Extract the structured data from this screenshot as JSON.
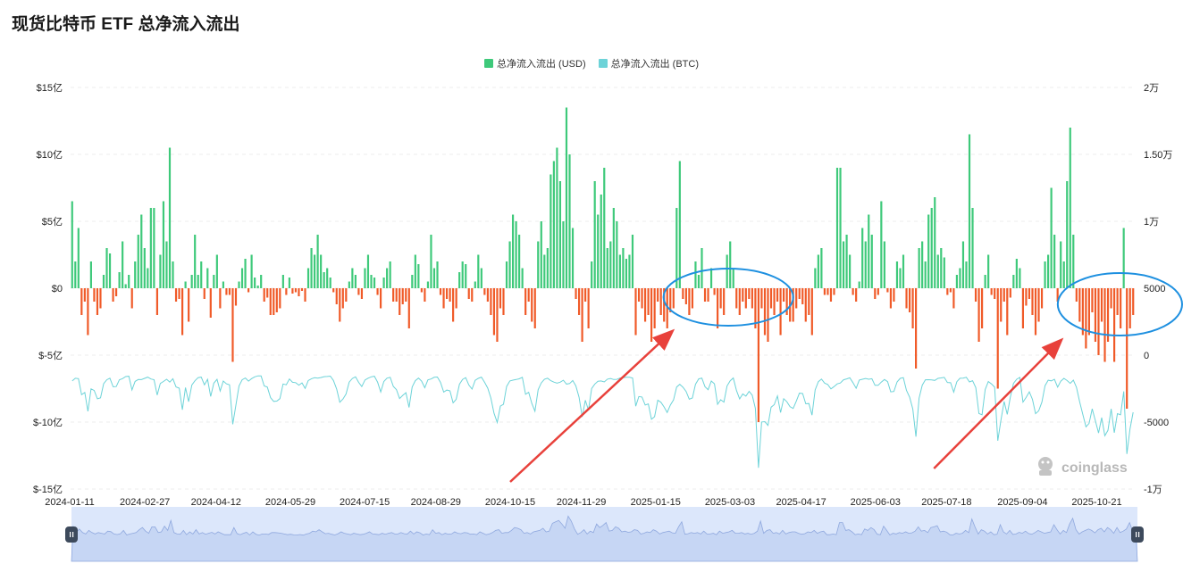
{
  "title": "现货比特币 ETF 总净流入流出",
  "watermark": "coinglass",
  "colors": {
    "inflow": "#3ec97a",
    "outflow": "#f05a28",
    "btc_line": "#6dd3d8",
    "annotation_arrow": "#e8413b",
    "annotation_ellipse": "#1e90e0"
  },
  "chart_data": {
    "type": "bar",
    "title": "现货比特币 ETF 总净流入流出",
    "legend": [
      "总净流入流出 (USD)",
      "总净流入流出 (BTC)"
    ],
    "legend_position": "top-center",
    "x_range": [
      "2024-01-11",
      "2025-11-14"
    ],
    "x_ticks": [
      "2024-01-11",
      "2024-02-27",
      "2024-04-12",
      "2024-05-29",
      "2024-07-15",
      "2024-08-29",
      "2024-10-15",
      "2024-11-29",
      "2025-01-15",
      "2025-03-03",
      "2025-04-17",
      "2025-06-03",
      "2025-07-18",
      "2025-09-04",
      "2025-10-21"
    ],
    "y_left": {
      "ticks": [
        "$15亿",
        "$10亿",
        "$5亿",
        "$0",
        "$-5亿",
        "$-10亿",
        "$-15亿"
      ],
      "range": [
        -15,
        15
      ],
      "unit": "亿 USD"
    },
    "y_right": {
      "ticks": [
        "2万",
        "1.50万",
        "1万",
        "5000",
        "0",
        "-5000",
        "-1万"
      ],
      "range": [
        -10000,
        20000
      ],
      "unit": "BTC"
    },
    "grid": true,
    "series": [
      {
        "name": "总净流入流出 (USD)",
        "kind": "bar",
        "values_note": "daily net flow, 亿 USD",
        "values": [
          6.5,
          2,
          4.5,
          -2,
          -1,
          -3.5,
          2,
          -1,
          -2,
          -1.5,
          1,
          3,
          2.6,
          -1,
          -0.6,
          1.2,
          3.5,
          0.3,
          1,
          -1.5,
          2,
          4,
          5.5,
          3,
          1.5,
          6,
          6,
          -2,
          2.5,
          6.5,
          3.5,
          10.5,
          2,
          -1,
          -0.8,
          -3.5,
          0.5,
          -2.5,
          1,
          4,
          1,
          2,
          -0.8,
          1.5,
          -2.2,
          1,
          2.5,
          -1.5,
          0.5,
          -0.5,
          -0.5,
          -5.5,
          -1.3,
          0.5,
          1.5,
          2.2,
          -0.3,
          2.5,
          0.8,
          0.2,
          1,
          -1,
          -0.7,
          -2,
          -2,
          -1.8,
          -1.5,
          1,
          -0.5,
          0.8,
          -0.4,
          -0.3,
          -0.6,
          -0.2,
          -1,
          1.5,
          3,
          2.5,
          4,
          2.5,
          1.2,
          1.5,
          0.8,
          -0.3,
          -1.2,
          -2.5,
          -1.5,
          -1,
          0.5,
          1.5,
          1,
          -0.5,
          -0.8,
          1.5,
          2.5,
          1,
          0.8,
          -0.5,
          -1.5,
          0.8,
          1.5,
          2,
          -1,
          -1,
          -2,
          -1.2,
          -1,
          -3,
          1,
          2.5,
          1.8,
          -0.3,
          -1,
          0.5,
          4,
          1.5,
          2,
          -0.5,
          -1.5,
          -0.8,
          -1,
          -2.5,
          -1.5,
          1.2,
          2,
          1.8,
          -0.8,
          -1,
          0.5,
          2.5,
          1.5,
          -0.5,
          -1,
          -2,
          -3.5,
          -4,
          -1.5,
          -2,
          2,
          3.5,
          5.5,
          5,
          4,
          1.5,
          -2,
          -1,
          -2.5,
          -3,
          3.5,
          5,
          2.5,
          3,
          8.5,
          9.5,
          10.5,
          8,
          5,
          13.5,
          10,
          4.5,
          -0.8,
          -2,
          -4,
          -1,
          -3,
          2,
          8,
          5.5,
          7,
          9,
          3,
          3.5,
          6,
          5,
          2.5,
          3,
          2.2,
          2.5,
          4,
          -3.5,
          -1,
          -1.5,
          -2.5,
          -2,
          -4,
          -3,
          -1,
          -2,
          -2.5,
          -3,
          -1.8,
          -1.5,
          6,
          9.5,
          -0.8,
          -1.2,
          -2,
          -1.5,
          2,
          1,
          3,
          -1,
          -1,
          1.5,
          -0.5,
          -3,
          -1.5,
          -2,
          2.5,
          3.5,
          1.5,
          -1.5,
          -2,
          -1,
          -1.5,
          -0.8,
          -1.5,
          -3,
          -10,
          -1.5,
          -3.5,
          -4,
          -1.5,
          -2,
          -1,
          -3.5,
          -1,
          -2,
          -2.5,
          -2.5,
          -1.5,
          -0.8,
          -1.2,
          -2.5,
          -2,
          -3.5,
          1.5,
          2.5,
          3,
          -0.5,
          -0.5,
          -1,
          -0.5,
          9,
          9,
          3.5,
          4,
          2.5,
          -0.5,
          -1,
          0.5,
          4.5,
          3.5,
          5.5,
          4,
          -0.8,
          -0.5,
          6.5,
          3.5,
          -0.3,
          -1.5,
          -1,
          2,
          1.5,
          2.5,
          -1.5,
          -1.8,
          -3,
          -6,
          3,
          3.5,
          2,
          5.5,
          6,
          6.8,
          2.5,
          3,
          2.3,
          -0.5,
          -0.3,
          -1.5,
          1,
          1.5,
          3.5,
          2,
          11.5,
          6,
          -1,
          -4,
          -3,
          1,
          2.5,
          -0.5,
          -0.8,
          -7.5,
          -2.5,
          -1,
          -3.5,
          -0.7,
          1,
          2.2,
          1.5,
          -3,
          -1.3,
          -0.8,
          -2,
          -3.5,
          -2.5,
          -1.5,
          2,
          2.5,
          7.5,
          4,
          -1,
          3.5,
          2,
          8,
          12,
          4,
          -1,
          -2.5,
          -3.5,
          -4.5,
          -3.5,
          -1.8,
          -4,
          -5,
          -2.5,
          -5.5,
          -4,
          -1.5,
          -5.5,
          -2,
          -3,
          4.5,
          -9,
          -3,
          -2
        ]
      },
      {
        "name": "总净流入流出 (BTC)",
        "kind": "line",
        "axis": "right"
      }
    ],
    "annotations": [
      {
        "type": "arrow",
        "from_date": "2024-10-15",
        "to_date": "2025-01-25"
      },
      {
        "type": "ellipse",
        "around_dates": [
          "2025-01-20",
          "2025-04-12"
        ]
      },
      {
        "type": "arrow",
        "from_date": "2025-07-10",
        "to_date": "2025-09-28"
      },
      {
        "type": "ellipse",
        "around_dates": [
          "2025-09-28",
          "2025-11-14"
        ]
      }
    ]
  }
}
